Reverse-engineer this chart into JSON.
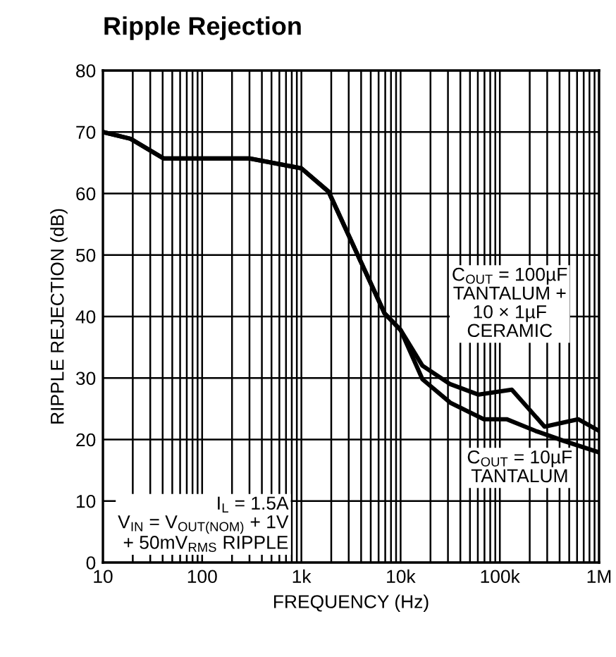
{
  "chart_data": {
    "type": "line",
    "title": "Ripple Rejection",
    "xlabel": "FREQUENCY (Hz)",
    "ylabel": "RIPPLE REJECTION (dB)",
    "log": "x",
    "xlim": [
      10,
      1000000
    ],
    "xticks": [
      10,
      100,
      {
        "value": 1000,
        "label": "1k"
      },
      {
        "value": 10000,
        "label": "10k"
      },
      {
        "value": 100000,
        "label": "100k"
      },
      {
        "value": 1000000,
        "label": "1M"
      }
    ],
    "ylim": [
      0,
      80
    ],
    "yticks": [
      0,
      10,
      20,
      30,
      40,
      50,
      60,
      70,
      80
    ],
    "grid": true,
    "legend": false,
    "line_style": "solid",
    "marker": "none",
    "series": [
      {
        "name": "C$_{OUT}$ = 100µF\nTANTALUM +\n10 × 1µF\nCERAMIC",
        "color": "#000000",
        "x": [
          10,
          19,
          41,
          100,
          300,
          1000,
          1880,
          3600,
          6900,
          10000,
          16600,
          31600,
          61000,
          132000,
          282000,
          616000,
          1000000
        ],
        "values": [
          70,
          68.9,
          65.7,
          65.7,
          65.7,
          64.1,
          60.3,
          50.4,
          40.5,
          37.8,
          32,
          29,
          27.3,
          28.1,
          22.1,
          23.3,
          21.4
        ]
      },
      {
        "name": "C$_{OUT}$ = 10µF\nTANTALUM",
        "color": "#000000",
        "x": [
          10,
          19,
          41,
          100,
          300,
          1000,
          1880,
          3600,
          6900,
          10000,
          16600,
          31600,
          69000,
          117000,
          229000,
          437000,
          1000000
        ],
        "values": [
          70,
          68.9,
          65.7,
          65.7,
          65.7,
          64.1,
          60.3,
          50.4,
          40.5,
          37.8,
          29.8,
          26,
          23.3,
          23.3,
          21.4,
          19.8,
          17.9
        ]
      }
    ],
    "annotations": [
      "I$_{L}$ = 1.5A\nV$_{IN}$ = V$_{OUT(NOM)}$ + 1V\n+ 50mV$_{RMS}$ RIPPLE"
    ]
  }
}
